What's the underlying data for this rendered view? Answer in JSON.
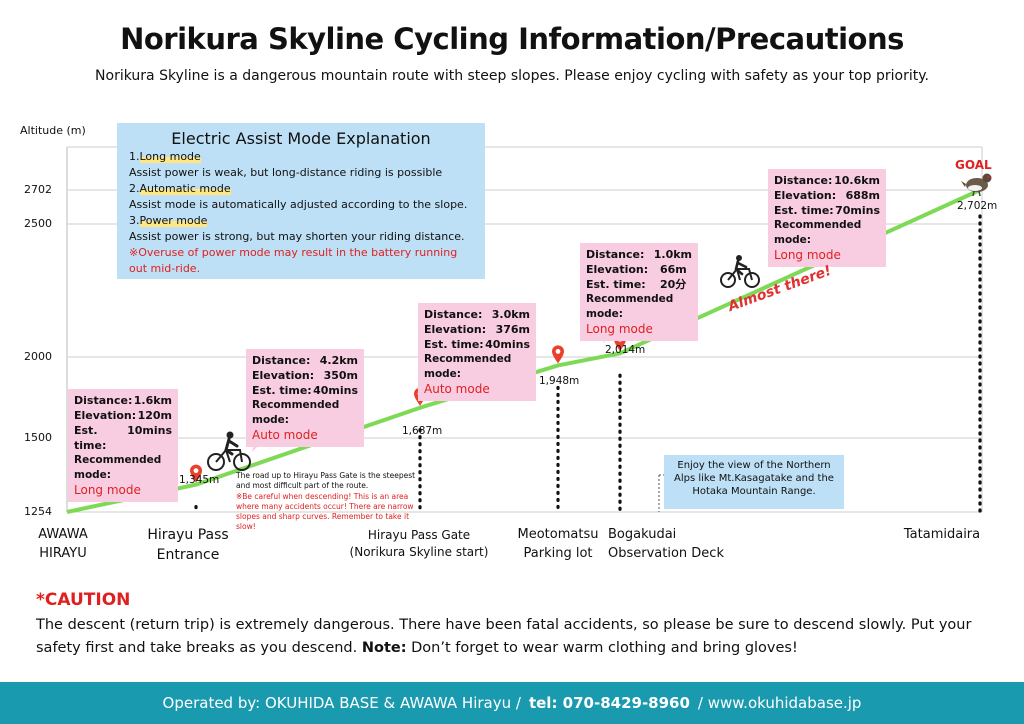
{
  "title": "Norikura Skyline Cycling Information/Precautions",
  "subtitle": "Norikura Skyline is a dangerous mountain route with steep slopes. Please enjoy cycling with safety as your top priority.",
  "axis": {
    "label": "Altitude (m)",
    "ticks": [
      {
        "label": "2702",
        "value": 2702
      },
      {
        "label": "2500",
        "value": 2500
      },
      {
        "label": "2000",
        "value": 2000
      },
      {
        "label": "1500",
        "value": 1500
      },
      {
        "label": "1254",
        "value": 1254
      }
    ]
  },
  "assist": {
    "heading": "Electric Assist Mode Explanation",
    "long_num": "1.",
    "long_name": "Long mode",
    "long_desc": "Assist power is weak, but long-distance riding is possible",
    "auto_num": "2.",
    "auto_name": "Automatic mode",
    "auto_desc": "Assist mode is automatically adjusted according to the slope.",
    "power_num": "3.",
    "power_name": "Power mode",
    "power_desc": "Assist power is strong, but may shorten your riding distance.",
    "warning": "※Overuse of power mode may result in the battery running out mid-ride."
  },
  "labels": {
    "distance": "Distance:",
    "elevation": "Elevation:",
    "time": "Est. time:",
    "recommended": "Recommended mode:"
  },
  "sections": [
    {
      "distance": "1.6km",
      "elevation": "120m",
      "time": "10mins",
      "mode": "Long mode"
    },
    {
      "distance": "4.2km",
      "elevation": "350m",
      "time": "40mins",
      "mode": "Auto mode"
    },
    {
      "distance": "3.0km",
      "elevation": "376m",
      "time": "40mins",
      "mode": "Auto mode"
    },
    {
      "distance": "1.0km",
      "elevation": "66m",
      "time": "20分",
      "mode": "Long mode"
    },
    {
      "distance": "10.6km",
      "elevation": "688m",
      "time": "70mins",
      "mode": "Long mode"
    }
  ],
  "points": [
    {
      "name": "AWAWA\nHIRAYU",
      "elevation_label": "",
      "altitude": 1254
    },
    {
      "name": "Hirayu Pass\nEntrance",
      "elevation_label": "1,345m",
      "altitude": 1345
    },
    {
      "name": "Hirayu Pass Gate\n(Norikura Skyline start)",
      "elevation_label": "1,687m",
      "altitude": 1687
    },
    {
      "name": "Meotomatsu\nParking lot",
      "elevation_label": "1,948m",
      "altitude": 1948
    },
    {
      "name": "Bogakudai\nObservation Deck",
      "elevation_label": "2,014m",
      "altitude": 2014
    },
    {
      "name": "Tatamidaira",
      "elevation_label": "2,702m",
      "altitude": 2702
    }
  ],
  "notes": {
    "steep": "The road up to Hirayu Pass Gate is the steepest and most difficult part of the route.",
    "descend": "※Be careful when descending! This is an area where many accidents occur! There are narrow slopes and sharp curves. Remember to take it slow!",
    "view": "Enjoy the view of the Northern Alps like Mt.Kasagatake and the Hotaka Mountain Range.",
    "almost": "Almost there!",
    "goal": "GOAL"
  },
  "caution": {
    "heading": "*CAUTION",
    "text_before": "The descent (return trip) is extremely dangerous. There have been fatal accidents, so please be sure to descend slowly. Put your safety first and take breaks as you descend. ",
    "note_label": "Note:",
    "text_after": " Don’t forget to wear warm clothing and bring gloves!"
  },
  "footer": {
    "operated": "Operated by: OKUHIDA BASE & AWAWA Hirayu /",
    "tel": "tel: 070-8429-8960",
    "web": "/ www.okuhidabase.jp"
  },
  "colors": {
    "route": "#7ed957",
    "pin": "#e8412c",
    "info_bg": "#f8cde2",
    "assist_bg": "#bde0f6",
    "footer_bg": "#1a9aaf",
    "warn": "#e02020"
  }
}
